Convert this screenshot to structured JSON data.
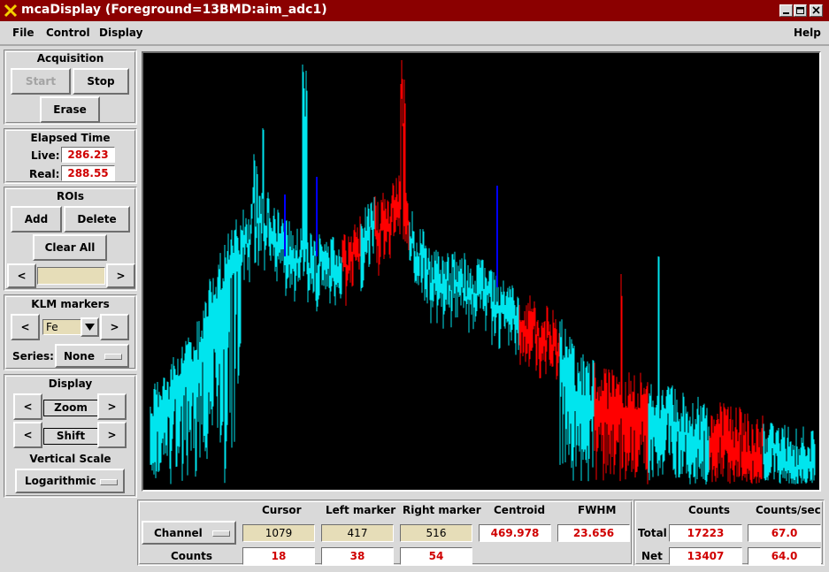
{
  "window": {
    "title": "mcaDisplay (Foreground=13BMD:aim_adc1)"
  },
  "menus": {
    "file": "File",
    "control": "Control",
    "display": "Display",
    "help": "Help"
  },
  "acquisition": {
    "title": "Acquisition",
    "start": "Start",
    "stop": "Stop",
    "erase": "Erase"
  },
  "elapsed": {
    "title": "Elapsed Time",
    "live_label": "Live:",
    "live": "286.23",
    "real_label": "Real:",
    "real": "288.55"
  },
  "rois": {
    "title": "ROIs",
    "add": "Add",
    "delete": "Delete",
    "clear_all": "Clear All",
    "prev": "<",
    "next": ">",
    "value": ""
  },
  "klm": {
    "title": "KLM markers",
    "prev": "<",
    "next": ">",
    "element": "Fe",
    "series_label": "Series:",
    "series": "None"
  },
  "display": {
    "title": "Display",
    "zoom": "Zoom",
    "shift": "Shift",
    "left": "<",
    "right": ">",
    "vscale_label": "Vertical Scale",
    "vscale": "Logarithmic"
  },
  "bottom": {
    "headers": {
      "cursor": "Cursor",
      "left_marker": "Left marker",
      "right_marker": "Right marker",
      "centroid": "Centroid",
      "fwhm": "FWHM"
    },
    "mode": "Channel",
    "cursor": "1079",
    "left_marker": "417",
    "right_marker": "516",
    "centroid": "469.978",
    "fwhm": "23.656",
    "counts_label": "Counts",
    "cursor_counts": "18",
    "left_counts": "38",
    "right_counts": "54"
  },
  "totals": {
    "headers": {
      "counts": "Counts",
      "counts_sec": "Counts/sec"
    },
    "total_label": "Total",
    "total_counts": "17223",
    "total_rate": "67.0",
    "net_label": "Net",
    "net_counts": "13407",
    "net_rate": "64.0"
  },
  "colors": {
    "titlebar": "#8b0000",
    "spectrum": "#00e5ee",
    "roi": "#ff0000",
    "markers": "#0000ff",
    "plot_bg": "#000000",
    "value_text": "#d00000"
  }
}
